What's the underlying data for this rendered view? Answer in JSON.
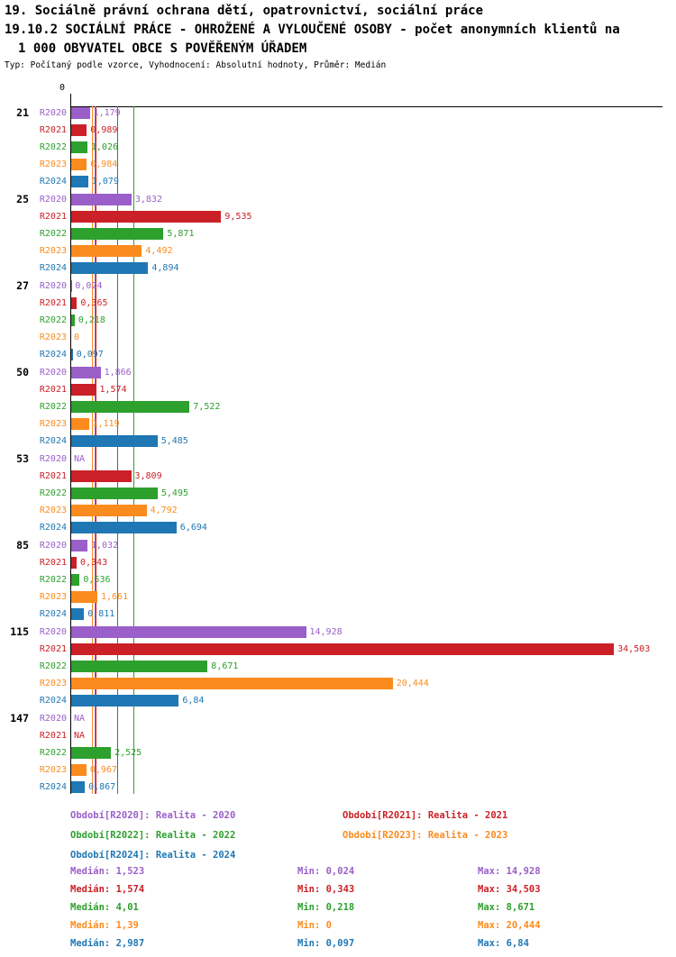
{
  "header": {
    "title_line1": "19. Sociálně právní ochrana dětí, opatrovnictví, sociální práce",
    "title_line2": "19.10.2 SOCIÁLNÍ PRÁCE - OHROŽENÉ A VYLOUČENÉ OSOBY - počet anonymních klientů na",
    "title_line3": "1 000 OBYVATEL OBCE S POVĚŘENÝM ÚŘADEM",
    "subtitle": "Typ: Počítaný podle vzorce, Vyhodnocení: Absolutní hodnoty, Průměr: Medián"
  },
  "chart_data": {
    "type": "bar",
    "orientation": "horizontal",
    "value_axis_origin_label": "0",
    "grid": false,
    "series": [
      "R2020",
      "R2021",
      "R2022",
      "R2023",
      "R2024"
    ],
    "series_colors": {
      "R2020": "#9A5FC9",
      "R2021": "#CB2027",
      "R2022": "#2DA02D",
      "R2023": "#FB8B1E",
      "R2024": "#1F77B4"
    },
    "groups": [
      {
        "label": "21",
        "values": [
          1.179,
          0.989,
          1.026,
          0.984,
          1.079
        ],
        "displays": [
          "1,179",
          "0,989",
          "1,026",
          "0,984",
          "1,079"
        ]
      },
      {
        "label": "25",
        "values": [
          3.832,
          9.535,
          5.871,
          4.492,
          4.894
        ],
        "displays": [
          "3,832",
          "9,535",
          "5,871",
          "4,492",
          "4,894"
        ]
      },
      {
        "label": "27",
        "values": [
          0.024,
          0.365,
          0.218,
          0,
          0.097
        ],
        "displays": [
          "0,024",
          "0,365",
          "0,218",
          "0",
          "0,097"
        ]
      },
      {
        "label": "50",
        "values": [
          1.866,
          1.574,
          7.522,
          1.119,
          5.485
        ],
        "displays": [
          "1,866",
          "1,574",
          "7,522",
          "1,119",
          "5,485"
        ]
      },
      {
        "label": "53",
        "values": [
          null,
          3.809,
          5.495,
          4.792,
          6.694
        ],
        "displays": [
          "NA",
          "3,809",
          "5,495",
          "4,792",
          "6,694"
        ]
      },
      {
        "label": "85",
        "values": [
          1.032,
          0.343,
          0.536,
          1.661,
          0.811
        ],
        "displays": [
          "1,032",
          "0,343",
          "0,536",
          "1,661",
          "0,811"
        ]
      },
      {
        "label": "115",
        "values": [
          14.928,
          34.503,
          8.671,
          20.444,
          6.84
        ],
        "displays": [
          "14,928",
          "34,503",
          "8,671",
          "20,444",
          "6,84"
        ]
      },
      {
        "label": "147",
        "values": [
          null,
          null,
          2.525,
          0.967,
          0.867
        ],
        "displays": [
          "NA",
          "NA",
          "2,525",
          "0,967",
          "0,867"
        ]
      }
    ],
    "median_lines": {
      "R2020": 1.523,
      "R2021": 1.574,
      "R2022": 4.01,
      "R2023": 1.39,
      "R2024": 2.987
    },
    "value_axis_range": [
      0,
      34.503
    ]
  },
  "legend": [
    {
      "series": "R2020",
      "label": "Období[R2020]: Realita - 2020"
    },
    {
      "series": "R2021",
      "label": "Období[R2021]: Realita - 2021"
    },
    {
      "series": "R2022",
      "label": "Období[R2022]: Realita - 2022"
    },
    {
      "series": "R2023",
      "label": "Období[R2023]: Realita - 2023"
    },
    {
      "series": "R2024",
      "label": "Období[R2024]: Realita - 2024"
    }
  ],
  "stats": [
    {
      "series": "R2020",
      "median": "Medián: 1,523",
      "min": "Min: 0,024",
      "max": "Max: 14,928"
    },
    {
      "series": "R2021",
      "median": "Medián: 1,574",
      "min": "Min: 0,343",
      "max": "Max: 34,503"
    },
    {
      "series": "R2022",
      "median": "Medián: 4,01",
      "min": "Min: 0,218",
      "max": "Max: 8,671"
    },
    {
      "series": "R2023",
      "median": "Medián: 1,39",
      "min": "Min: 0",
      "max": "Max: 20,444"
    },
    {
      "series": "R2024",
      "median": "Medián: 2,987",
      "min": "Min: 0,097",
      "max": "Max: 6,84"
    }
  ]
}
